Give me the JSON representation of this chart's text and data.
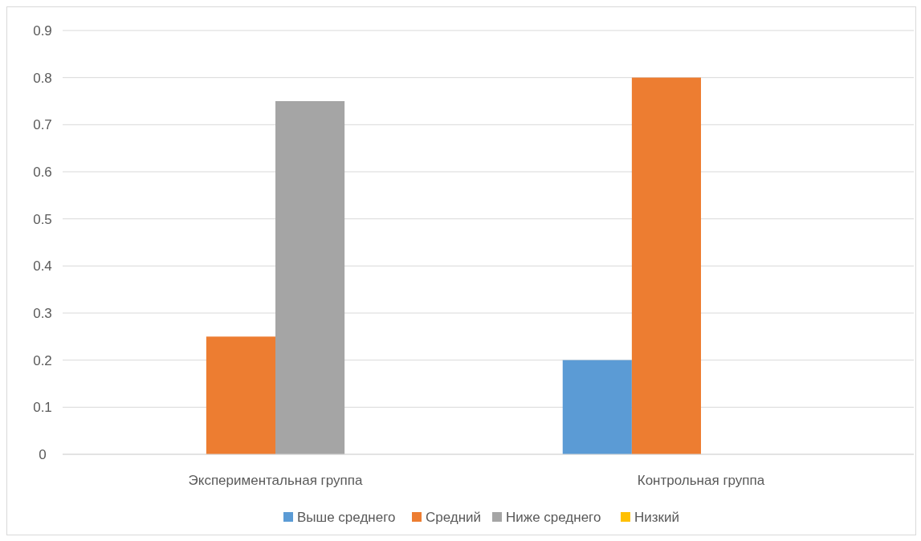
{
  "chart_data": {
    "type": "bar",
    "categories": [
      "Экспериментальная группа",
      "Контрольная группа"
    ],
    "series": [
      {
        "name": "Выше среднего",
        "color": "#5b9bd5",
        "values": [
          0,
          0.2
        ]
      },
      {
        "name": "Средний",
        "color": "#ed7d31",
        "values": [
          0.25,
          0.8
        ]
      },
      {
        "name": "Ниже среднего",
        "color": "#a5a5a5",
        "values": [
          0.75,
          0
        ]
      },
      {
        "name": "Низкий",
        "color": "#ffc000",
        "values": [
          0,
          0
        ]
      }
    ],
    "ylim": [
      0,
      0.9
    ],
    "yticks": [
      0,
      0.1,
      0.2,
      0.3,
      0.4,
      0.5,
      0.6,
      0.7,
      0.8,
      0.9
    ],
    "grid": "y",
    "legend": "bottom"
  }
}
